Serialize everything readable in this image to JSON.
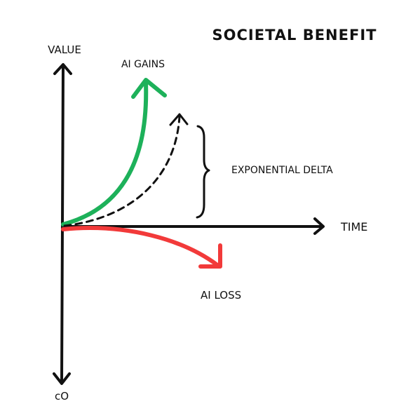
{
  "diagram": {
    "title": "SOCIETAL BENEFIT",
    "y_axis_label": "VALUE",
    "x_axis_label": "TIME",
    "origin_label": "cO",
    "gains_label": "AI GAINS",
    "delta_label": "EXPONENTIAL DELTA",
    "loss_label": "AI LOSS"
  },
  "colors": {
    "axis": "#111111",
    "gains": "#1db15a",
    "loss": "#f23a3a",
    "dashed": "#111111",
    "text": "#111111"
  }
}
